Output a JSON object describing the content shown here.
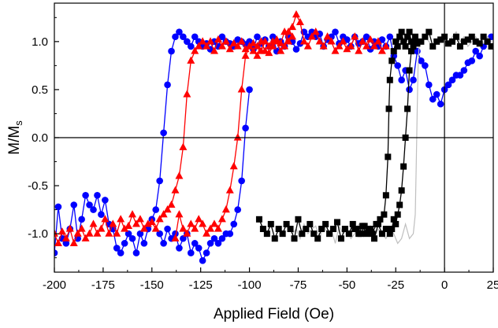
{
  "chart_data": {
    "type": "scatter",
    "xlabel": "Applied Field (Oe)",
    "ylabel": {
      "main": "M/M",
      "sub": "s"
    },
    "xlim": [
      -200,
      25
    ],
    "ylim": [
      -1.4,
      1.4
    ],
    "xticks": [
      -200,
      -175,
      -150,
      -125,
      -100,
      -75,
      -50,
      -25,
      0,
      25
    ],
    "xtick_labels": [
      "-200",
      "-175",
      "-150",
      "-125",
      "-100",
      "-75",
      "-50",
      "-25",
      "0",
      "25"
    ],
    "yticks": [
      -1.0,
      -0.5,
      0.0,
      0.5,
      1.0
    ],
    "ytick_labels": [
      "-1.0",
      "-0.5",
      "0.0",
      "0.5",
      "1.0"
    ],
    "reference_lines": {
      "y": 0,
      "x": 0
    },
    "grid": false,
    "legend": "none",
    "series": [
      {
        "color": "#0000ff",
        "marker": "circle",
        "x": [
          -200,
          -198,
          -196,
          -194,
          -192,
          -190,
          -188,
          -186,
          -184,
          -182,
          -180,
          -178,
          -176,
          -174,
          -172,
          -170,
          -168,
          -166,
          -164,
          -162,
          -160,
          -158,
          -156,
          -154,
          -152,
          -150,
          -148,
          -146,
          -144,
          -142,
          -140,
          -138,
          -136,
          -134,
          -132,
          -130,
          -128,
          -126,
          -124,
          -122,
          -120,
          -118,
          -116,
          -114,
          -112,
          -110,
          -108,
          -106,
          -104,
          -102,
          -100,
          -98,
          -96,
          -94,
          -92,
          -90,
          -88,
          -86,
          -84,
          -82,
          -80,
          -78,
          -76,
          -74,
          -72,
          -70,
          -68,
          -66,
          -64,
          -62,
          -60,
          -58,
          -56,
          -54,
          -52,
          -50,
          -48,
          -46,
          -44,
          -42,
          -40,
          -38,
          -36,
          -34,
          -32,
          -30,
          -28,
          -26,
          -24,
          -22,
          -20,
          -18,
          -16,
          -14,
          -12,
          -10,
          -8,
          -6,
          -4,
          -2,
          0,
          2,
          4,
          6,
          8,
          10,
          12,
          14,
          16,
          18,
          20,
          22,
          24
        ],
        "y": [
          -1.2,
          -0.72,
          -1.05,
          -1.1,
          -0.95,
          -0.7,
          -1.05,
          -0.85,
          -0.6,
          -0.7,
          -0.75,
          -0.6,
          -0.8,
          -0.65,
          -0.9,
          -0.95,
          -1.15,
          -1.2,
          -1.1,
          -1.0,
          -1.05,
          -1.2,
          -1.0,
          -1.1,
          -0.95,
          -0.85,
          -0.75,
          -0.45,
          0.05,
          0.55,
          0.9,
          1.05,
          1.1,
          1.05,
          1.0,
          0.95,
          1.05,
          1.0,
          0.95,
          0.98,
          0.92,
          1.0,
          0.95,
          1.05,
          1.0,
          0.98,
          0.95,
          1.02,
          1.0,
          0.97,
          1.0,
          0.92,
          1.05,
          0.98,
          1.02,
          0.95,
          1.05,
          0.9,
          1.0,
          0.95,
          1.05,
          1.0,
          0.92,
          0.98,
          1.1,
          1.05,
          1.1,
          1.05,
          1.08,
          0.95,
          1.02,
          1.05,
          1.1,
          0.98,
          1.05,
          1.02,
          0.95,
          1.05,
          0.98,
          1.0,
          1.05,
          0.92,
          1.0,
          0.95,
          1.02,
          0.95,
          1.05,
          0.85,
          0.75,
          0.6,
          0.7,
          0.5,
          0.6,
          0.9,
          0.8,
          0.75,
          0.55,
          0.4,
          0.45,
          0.35,
          0.5,
          0.55,
          0.6,
          0.65,
          0.65,
          0.7,
          0.78,
          0.8,
          0.9,
          0.85,
          0.95,
          1.0,
          1.05
        ],
        "x_return": [
          -100,
          -102,
          -104,
          -106,
          -108,
          -110,
          -112,
          -114,
          -116,
          -118,
          -120,
          -122,
          -124,
          -126,
          -128,
          -130,
          -132,
          -134,
          -136,
          -138,
          -140,
          -142,
          -144,
          -146
        ],
        "y_return": [
          0.5,
          0.1,
          -0.45,
          -0.75,
          -0.9,
          -1.0,
          -1.0,
          -1.05,
          -1.1,
          -1.05,
          -1.1,
          -1.2,
          -1.28,
          -1.15,
          -1.1,
          -1.2,
          -1.0,
          -1.05,
          -1.15,
          -1.0,
          -1.05,
          -0.95,
          -1.1,
          -1.0
        ]
      },
      {
        "color": "#ff0000",
        "marker": "triangle",
        "x": [
          -200,
          -198,
          -196,
          -194,
          -192,
          -190,
          -188,
          -186,
          -184,
          -182,
          -180,
          -178,
          -176,
          -174,
          -172,
          -170,
          -168,
          -166,
          -164,
          -162,
          -160,
          -158,
          -156,
          -154,
          -152,
          -150,
          -148,
          -146,
          -144,
          -142,
          -140,
          -138,
          -136,
          -134,
          -132,
          -130,
          -128,
          -126,
          -124,
          -122,
          -120,
          -118,
          -116,
          -114,
          -112,
          -110,
          -108,
          -106,
          -104,
          -102,
          -100,
          -98,
          -96,
          -94,
          -92,
          -90,
          -88,
          -86,
          -84,
          -82,
          -80,
          -78,
          -76,
          -74,
          -72,
          -70,
          -68,
          -66,
          -64,
          -62,
          -60,
          -58,
          -56,
          -54,
          -52,
          -50,
          -48,
          -46,
          -44,
          -42,
          -40,
          -38,
          -36,
          -34,
          -32,
          -30
        ],
        "y": [
          -1.0,
          -1.1,
          -0.98,
          -1.05,
          -0.95,
          -1.1,
          -1.0,
          -0.95,
          -1.05,
          -1.0,
          -0.9,
          -1.0,
          -0.95,
          -0.85,
          -1.0,
          -0.9,
          -1.0,
          -0.85,
          -0.95,
          -0.92,
          -0.8,
          -0.9,
          -0.85,
          -0.95,
          -0.9,
          -0.88,
          -0.95,
          -0.85,
          -0.8,
          -0.75,
          -0.7,
          -0.55,
          -0.4,
          -0.1,
          0.45,
          0.8,
          0.9,
          0.95,
          1.0,
          0.95,
          1.0,
          0.9,
          1.02,
          0.95,
          1.0,
          0.92,
          0.98,
          0.95,
          1.0,
          0.92,
          0.95,
          0.9,
          0.85,
          1.0,
          0.9,
          0.88,
          0.95,
          1.0,
          0.9,
          0.95,
          1.1,
          1.15,
          1.28,
          1.2,
          1.0,
          0.95,
          1.05,
          1.1,
          1.0,
          0.95,
          1.05,
          1.0,
          0.9,
          0.95,
          1.0,
          0.92,
          0.95,
          1.05,
          0.9,
          1.0,
          0.95,
          1.02,
          0.95,
          1.0,
          0.9,
          0.95
        ],
        "x_return": [
          -78,
          -80,
          -82,
          -84,
          -86,
          -88,
          -90,
          -92,
          -94,
          -96,
          -98,
          -100,
          -102,
          -104,
          -106,
          -108,
          -110,
          -112,
          -114,
          -116,
          -118,
          -120,
          -122,
          -124,
          -126,
          -128,
          -130,
          -132,
          -134,
          -136,
          -138
        ],
        "y_return": [
          1.05,
          1.0,
          1.1,
          0.98,
          1.02,
          1.0,
          0.95,
          1.0,
          0.9,
          0.95,
          0.98,
          0.95,
          0.85,
          0.5,
          0.0,
          -0.3,
          -0.55,
          -0.75,
          -0.85,
          -0.95,
          -0.9,
          -0.95,
          -1.0,
          -0.9,
          -0.85,
          -0.95,
          -0.9,
          -1.0,
          -0.95,
          -0.8,
          -1.05
        ]
      },
      {
        "color": "#000000",
        "marker": "square",
        "x": [
          -95,
          -93,
          -91,
          -89,
          -87,
          -85,
          -83,
          -81,
          -79,
          -77,
          -75,
          -73,
          -71,
          -69,
          -67,
          -65,
          -63,
          -61,
          -59,
          -57,
          -55,
          -53,
          -51,
          -49,
          -47,
          -45,
          -43,
          -41,
          -39,
          -37,
          -35,
          -33,
          -31,
          -30,
          -29,
          -28.5,
          -28,
          -27,
          -26,
          -25,
          -24,
          -23,
          -22,
          -21,
          -20,
          -19,
          -18,
          -17,
          -16,
          -15,
          -14,
          -12,
          -10,
          -8,
          -6,
          -4,
          -2,
          0,
          2,
          4,
          6,
          8,
          10,
          12,
          14,
          16,
          18,
          20,
          22,
          24
        ],
        "y": [
          -0.85,
          -0.95,
          -1.0,
          -0.9,
          -1.05,
          -0.95,
          -1.0,
          -0.9,
          -0.95,
          -1.05,
          -0.85,
          -1.0,
          -0.95,
          -0.9,
          -1.0,
          -1.05,
          -0.95,
          -0.9,
          -1.0,
          -0.95,
          -0.88,
          -1.05,
          -0.95,
          -1.0,
          -0.9,
          -0.95,
          -1.0,
          -0.92,
          -0.95,
          -1.0,
          -0.9,
          -0.85,
          -0.8,
          -0.6,
          -0.2,
          0.3,
          0.6,
          0.8,
          0.9,
          1.0,
          0.95,
          1.05,
          1.1,
          1.0,
          0.95,
          1.05,
          1.1,
          1.0,
          0.95,
          1.05,
          0.98,
          1.0,
          1.05,
          1.1,
          0.95,
          1.0,
          1.02,
          1.05,
          0.98,
          1.0,
          1.05,
          0.95,
          1.0,
          1.02,
          1.05,
          1.0,
          0.98,
          1.05,
          1.0,
          0.95
        ],
        "x_return": [
          -15,
          -16,
          -17,
          -18,
          -19,
          -20,
          -21,
          -22,
          -23,
          -24,
          -25,
          -26,
          -27,
          -28,
          -30,
          -32,
          -34,
          -36,
          -38,
          -40,
          -42,
          -44,
          -46
        ],
        "y_return": [
          1.0,
          0.95,
          0.9,
          0.7,
          0.3,
          0.0,
          -0.3,
          -0.55,
          -0.7,
          -0.8,
          -0.9,
          -0.85,
          -0.95,
          -1.0,
          -0.95,
          -1.0,
          -0.9,
          -1.05,
          -0.95,
          -1.0,
          -0.92,
          -1.0,
          -0.95
        ]
      },
      {
        "color": "#bfbfbf",
        "marker": "none",
        "x": [
          -78,
          -76,
          -74,
          -72,
          -70,
          -68,
          -66,
          -64,
          -62,
          -60,
          -58,
          -56,
          -54,
          -52,
          -50,
          -48,
          -46,
          -44,
          -42,
          -40,
          -38,
          -36,
          -34,
          -32,
          -30,
          -28,
          -26,
          -24,
          -22,
          -20,
          -18,
          -16,
          -15,
          -14.5,
          -14,
          -13.5,
          -13,
          -12,
          -10,
          -8,
          -6,
          -4,
          -2,
          0,
          2,
          4,
          6,
          8,
          10,
          12,
          14,
          16,
          18,
          20,
          22,
          24
        ],
        "y": [
          -1.0,
          -0.95,
          -1.05,
          -0.9,
          -1.0,
          -0.95,
          -0.92,
          -1.05,
          -0.9,
          -1.0,
          -0.95,
          -1.1,
          -0.92,
          -1.0,
          -0.95,
          -1.05,
          -1.0,
          -0.9,
          -0.95,
          -1.0,
          -0.92,
          -1.05,
          -0.95,
          -1.0,
          -1.05,
          -0.95,
          -1.0,
          -1.1,
          -1.05,
          -0.9,
          -1.05,
          -1.0,
          -0.8,
          -0.3,
          0.3,
          0.8,
          0.95,
          1.0,
          1.05,
          1.0,
          0.95,
          1.0,
          1.05,
          1.0,
          0.98,
          1.05,
          1.1,
          1.0,
          1.05,
          0.95,
          1.0,
          1.05,
          1.0,
          0.98,
          1.05,
          1.0
        ]
      }
    ]
  }
}
